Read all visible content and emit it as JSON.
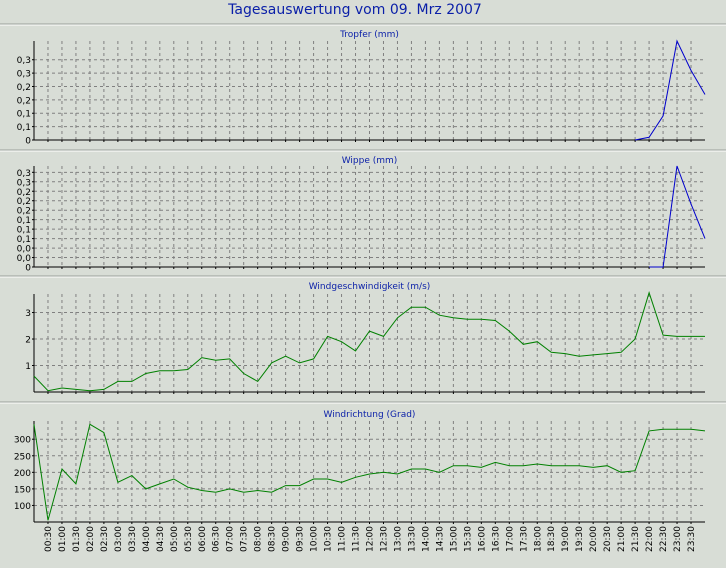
{
  "page_title": "Tagesauswertung vom 09. Mrz 2007",
  "colors": {
    "background": "#d8ddd6",
    "title": "#0a1fa8",
    "grid": "#808080",
    "blue_series": "#0000cc",
    "green_series": "#008000"
  },
  "chart_data": [
    {
      "type": "line",
      "title": "Tropfer (mm)",
      "color": "#0000cc",
      "ylim": [
        0,
        0.37
      ],
      "yticks": [
        0,
        0.05,
        0.1,
        0.15,
        0.2,
        0.25,
        0.3
      ],
      "yticklabels": [
        "0",
        "0,1",
        "0,1",
        "0,2",
        "0,2",
        "0,3",
        "0,3"
      ],
      "grid": true,
      "x": [
        "21:30",
        "22:00",
        "22:30",
        "23:00",
        "23:30",
        "24:00"
      ],
      "values": [
        0,
        0.01,
        0.09,
        0.37,
        0.26,
        0.17
      ]
    },
    {
      "type": "line",
      "title": "Wippe (mm)",
      "color": "#0000cc",
      "ylim": [
        0,
        0.32
      ],
      "yticks": [
        0,
        0.03,
        0.06,
        0.09,
        0.12,
        0.15,
        0.18,
        0.21,
        0.24,
        0.27,
        0.3
      ],
      "yticklabels": [
        "0",
        "0,0",
        "0,0",
        "0,1",
        "0,1",
        "0,1",
        "0,2",
        "0,2",
        "0,2",
        "0,3",
        "0,3"
      ],
      "grid": true,
      "x": [
        "22:00",
        "22:30",
        "23:00",
        "23:30",
        "24:00"
      ],
      "values": [
        0,
        0,
        0.32,
        0.2,
        0.09
      ]
    },
    {
      "type": "line",
      "title": "Windgeschwindigkeit (m/s)",
      "color": "#008000",
      "ylim": [
        0,
        3.7
      ],
      "yticks": [
        1,
        2,
        3
      ],
      "yticklabels": [
        "1",
        "2",
        "3"
      ],
      "grid": true,
      "x": [
        "00:00",
        "00:30",
        "01:00",
        "01:30",
        "02:00",
        "02:30",
        "03:00",
        "03:30",
        "04:00",
        "04:30",
        "05:00",
        "05:30",
        "06:00",
        "06:30",
        "07:00",
        "07:30",
        "08:00",
        "08:30",
        "09:00",
        "09:30",
        "10:00",
        "10:30",
        "11:00",
        "11:30",
        "12:00",
        "12:30",
        "13:00",
        "13:30",
        "14:00",
        "14:30",
        "15:00",
        "15:30",
        "16:00",
        "16:30",
        "17:00",
        "17:30",
        "18:00",
        "18:30",
        "19:00",
        "19:30",
        "20:00",
        "20:30",
        "21:00",
        "21:30",
        "22:00",
        "22:30",
        "23:00",
        "23:30",
        "24:00"
      ],
      "values": [
        0.6,
        0.05,
        0.15,
        0.1,
        0.05,
        0.1,
        0.4,
        0.4,
        0.7,
        0.8,
        0.8,
        0.85,
        1.3,
        1.2,
        1.25,
        0.7,
        0.4,
        1.1,
        1.35,
        1.1,
        1.25,
        2.1,
        1.9,
        1.55,
        2.3,
        2.1,
        2.8,
        3.2,
        3.2,
        2.9,
        2.8,
        2.75,
        2.75,
        2.7,
        2.3,
        1.8,
        1.9,
        1.5,
        1.45,
        1.35,
        1.4,
        1.45,
        1.5,
        2.0,
        3.75,
        2.15,
        2.1,
        2.1,
        2.1
      ]
    },
    {
      "type": "line",
      "title": "Windrichtung (Grad)",
      "color": "#008000",
      "ylim": [
        50,
        355
      ],
      "yticks": [
        100,
        150,
        200,
        250,
        300
      ],
      "yticklabels": [
        "100",
        "150",
        "200",
        "250",
        "300"
      ],
      "grid": true,
      "x": [
        "00:00",
        "00:30",
        "01:00",
        "01:30",
        "02:00",
        "02:30",
        "03:00",
        "03:30",
        "04:00",
        "04:30",
        "05:00",
        "05:30",
        "06:00",
        "06:30",
        "07:00",
        "07:30",
        "08:00",
        "08:30",
        "09:00",
        "09:30",
        "10:00",
        "10:30",
        "11:00",
        "11:30",
        "12:00",
        "12:30",
        "13:00",
        "13:30",
        "14:00",
        "14:30",
        "15:00",
        "15:30",
        "16:00",
        "16:30",
        "17:00",
        "17:30",
        "18:00",
        "18:30",
        "19:00",
        "19:30",
        "20:00",
        "20:30",
        "21:00",
        "21:30",
        "22:00",
        "22:30",
        "23:00",
        "23:30",
        "24:00"
      ],
      "values": [
        345,
        55,
        210,
        165,
        345,
        320,
        170,
        190,
        150,
        165,
        180,
        155,
        145,
        140,
        150,
        140,
        145,
        140,
        160,
        160,
        180,
        180,
        170,
        185,
        195,
        200,
        195,
        210,
        210,
        200,
        220,
        220,
        215,
        230,
        220,
        220,
        225,
        220,
        220,
        220,
        215,
        220,
        200,
        205,
        325,
        330,
        330,
        330,
        325
      ],
      "xticklabels": [
        "00:30",
        "01:00",
        "01:30",
        "02:00",
        "02:30",
        "03:00",
        "03:30",
        "04:00",
        "04:30",
        "05:00",
        "05:30",
        "06:00",
        "06:30",
        "07:00",
        "07:30",
        "08:00",
        "08:30",
        "09:00",
        "09:30",
        "10:00",
        "10:30",
        "11:00",
        "11:30",
        "12:00",
        "12:30",
        "13:00",
        "13:30",
        "14:00",
        "14:30",
        "15:00",
        "15:30",
        "16:00",
        "16:30",
        "17:00",
        "17:30",
        "18:00",
        "18:30",
        "19:00",
        "19:30",
        "20:00",
        "20:30",
        "21:00",
        "21:30",
        "22:00",
        "22:30",
        "23:00",
        "23:30"
      ]
    }
  ]
}
